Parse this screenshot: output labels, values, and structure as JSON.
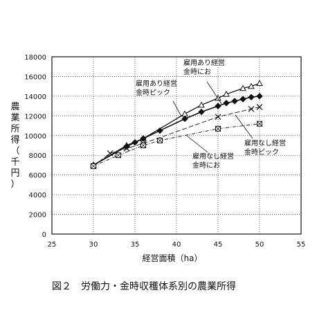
{
  "chart_data": {
    "type": "line",
    "xlabel": "経営面積（ha）",
    "ylabel": "農業所得（千円）",
    "xlim": [
      25,
      55
    ],
    "ylim": [
      0,
      18000
    ],
    "xticks": [
      25,
      30,
      35,
      40,
      45,
      50,
      55
    ],
    "yticks": [
      0,
      2000,
      4000,
      6000,
      8000,
      10000,
      12000,
      14000,
      16000,
      18000
    ],
    "grid": "dotted",
    "series": [
      {
        "name": "雇用あり経営 金時にお",
        "marker": "triangle",
        "points": [
          [
            30,
            7000
          ],
          [
            34,
            9000
          ],
          [
            36,
            9700
          ],
          [
            41,
            12200
          ],
          [
            43,
            13100
          ],
          [
            45,
            13800
          ],
          [
            46,
            14200
          ],
          [
            48,
            14800
          ],
          [
            49,
            15000
          ],
          [
            50,
            15300
          ]
        ]
      },
      {
        "name": "雇用あり経営 金時ピック",
        "marker": "diamond",
        "points": [
          [
            30,
            7000
          ],
          [
            34,
            8900
          ],
          [
            35,
            9300
          ],
          [
            36,
            9700
          ],
          [
            38,
            10500
          ],
          [
            41,
            11700
          ],
          [
            43,
            12400
          ],
          [
            45,
            13000
          ],
          [
            46,
            13300
          ],
          [
            47,
            13500
          ],
          [
            48,
            13700
          ],
          [
            49,
            13900
          ],
          [
            50,
            14000
          ]
        ]
      },
      {
        "name": "雇用なし経営 金時ピック",
        "marker": "x",
        "points": [
          [
            30,
            6900
          ],
          [
            32,
            8200
          ],
          [
            34,
            8700
          ],
          [
            36,
            9200
          ],
          [
            45,
            11900
          ],
          [
            49,
            12700
          ],
          [
            50,
            12900
          ]
        ]
      },
      {
        "name": "雇用なし経営 金時にお",
        "marker": "boxx",
        "points": [
          [
            30,
            6900
          ],
          [
            33,
            8000
          ],
          [
            36,
            9000
          ],
          [
            38,
            9500
          ],
          [
            45,
            10700
          ],
          [
            50,
            11200
          ]
        ]
      }
    ],
    "annotations": [
      {
        "line1": "雇用あり経営",
        "line2": "金時にお"
      },
      {
        "line1": "雇用あり経営",
        "line2": "金時ピック"
      },
      {
        "line1": "雇用なし経営",
        "line2": "金時ピック"
      },
      {
        "line1": "雇用なし経営",
        "line2": "金時にお"
      }
    ]
  },
  "caption": "図２　労働力・金時収穫体系別の農業所得"
}
